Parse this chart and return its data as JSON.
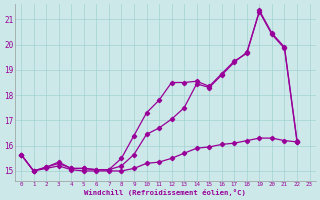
{
  "xlabel": "Windchill (Refroidissement éolien,°C)",
  "background_color": "#cce8e8",
  "line_color": "#990099",
  "xlim": [
    -0.5,
    23.5
  ],
  "ylim": [
    14.6,
    21.6
  ],
  "yticks": [
    15,
    16,
    17,
    18,
    19,
    20,
    21
  ],
  "xticks": [
    0,
    1,
    2,
    3,
    4,
    5,
    6,
    7,
    8,
    9,
    10,
    11,
    12,
    13,
    14,
    15,
    16,
    17,
    18,
    19,
    20,
    21,
    22,
    23
  ],
  "line1_x": [
    0,
    1,
    2,
    3,
    4,
    5,
    6,
    7,
    8,
    9,
    10,
    11,
    12,
    13,
    14,
    15,
    16,
    17,
    18,
    19,
    20,
    21,
    22
  ],
  "line1_y": [
    15.65,
    15.0,
    15.15,
    15.35,
    15.1,
    15.1,
    15.05,
    15.05,
    15.5,
    16.4,
    17.3,
    17.8,
    18.5,
    18.5,
    18.55,
    18.35,
    18.85,
    19.35,
    19.65,
    21.35,
    20.45,
    19.9,
    16.2
  ],
  "line2_x": [
    0,
    1,
    2,
    3,
    4,
    5,
    6,
    7,
    8,
    9,
    10,
    11,
    12,
    13,
    14,
    15,
    16,
    17,
    18,
    19,
    20,
    21,
    22
  ],
  "line2_y": [
    15.65,
    15.0,
    15.15,
    15.3,
    15.1,
    15.1,
    15.05,
    15.05,
    15.2,
    15.65,
    16.45,
    16.7,
    17.05,
    17.5,
    18.45,
    18.3,
    18.8,
    19.3,
    19.7,
    21.3,
    20.4,
    19.85,
    16.15
  ],
  "line3_x": [
    0,
    1,
    2,
    3,
    4,
    5,
    6,
    7,
    8,
    9,
    10,
    11,
    12,
    13,
    14,
    15,
    16,
    17,
    18,
    19,
    20,
    21,
    22
  ],
  "line3_y": [
    15.65,
    15.0,
    15.1,
    15.2,
    15.05,
    15.0,
    15.0,
    15.0,
    15.0,
    15.1,
    15.3,
    15.35,
    15.5,
    15.7,
    15.9,
    15.95,
    16.05,
    16.1,
    16.2,
    16.3,
    16.3,
    16.2,
    16.15
  ]
}
